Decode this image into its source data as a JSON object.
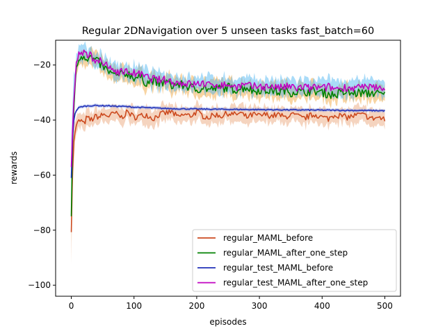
{
  "chart_data": {
    "type": "line",
    "title": "Regular 2DNavigation over 5 unseen tasks fast_batch=60",
    "xlabel": "episodes",
    "ylabel": "rewards",
    "xlim": [
      -25,
      525
    ],
    "ylim": [
      -104,
      -11
    ],
    "xticks": [
      0,
      100,
      200,
      300,
      400,
      500
    ],
    "yticks": [
      -100,
      -80,
      -60,
      -40,
      -20
    ],
    "xtick_labels": [
      "0",
      "100",
      "200",
      "300",
      "400",
      "500"
    ],
    "ytick_labels": [
      "−100",
      "−80",
      "−60",
      "−40",
      "−20"
    ],
    "legend_position": "lower-right",
    "grid": false,
    "series": [
      {
        "name": "regular_MAML_before",
        "color": "#cc4a1f",
        "band_color": "#e8a070",
        "x": [
          0,
          1,
          3,
          6,
          10,
          15,
          20,
          25,
          30,
          35,
          40,
          45,
          50,
          60,
          70,
          80,
          90,
          100,
          110,
          120,
          130,
          140,
          150,
          160,
          170,
          180,
          190,
          200,
          210,
          220,
          230,
          240,
          250,
          260,
          270,
          280,
          290,
          300,
          310,
          320,
          330,
          340,
          350,
          360,
          370,
          380,
          390,
          400,
          410,
          420,
          430,
          440,
          450,
          460,
          470,
          480,
          490,
          500
        ],
        "y": [
          -80.5,
          -67,
          -50,
          -44,
          -41,
          -40,
          -41.5,
          -39,
          -40,
          -39.5,
          -38.5,
          -39,
          -38,
          -38.5,
          -37.5,
          -39,
          -37,
          -39,
          -38.5,
          -38,
          -39.5,
          -38,
          -37.5,
          -37,
          -39,
          -38,
          -38.5,
          -37,
          -38.5,
          -39,
          -38,
          -38.5,
          -37.5,
          -38,
          -37.5,
          -39,
          -38,
          -38.5,
          -38,
          -38.5,
          -38,
          -39,
          -38,
          -38.5,
          -39.5,
          -38.5,
          -38,
          -39,
          -39.5,
          -38,
          -38.5,
          -39,
          -38.5,
          -38,
          -38.5,
          -39.5,
          -39,
          -40
        ]
      },
      {
        "name": "regular_MAML_after_one_step",
        "color": "#008000",
        "band_color": "#f0a030",
        "x": [
          0,
          2,
          5,
          8,
          11,
          14,
          17,
          20,
          25,
          30,
          35,
          40,
          45,
          50,
          60,
          70,
          80,
          90,
          100,
          110,
          120,
          130,
          140,
          150,
          160,
          170,
          180,
          190,
          200,
          210,
          220,
          230,
          240,
          250,
          260,
          270,
          280,
          290,
          300,
          310,
          320,
          330,
          340,
          350,
          360,
          370,
          380,
          390,
          400,
          410,
          420,
          430,
          440,
          450,
          460,
          470,
          480,
          490,
          500
        ],
        "y": [
          -75,
          -48,
          -30,
          -22,
          -18.5,
          -17,
          -16.8,
          -16.5,
          -17.5,
          -17,
          -18,
          -18.5,
          -19.5,
          -20.5,
          -22.5,
          -24,
          -23.5,
          -23,
          -24.5,
          -24.5,
          -26.5,
          -25.5,
          -27,
          -26,
          -27.5,
          -27,
          -27.5,
          -28,
          -29,
          -28,
          -29,
          -28.5,
          -28.5,
          -28,
          -29,
          -28.5,
          -28,
          -29.5,
          -29,
          -29.5,
          -29,
          -30,
          -29,
          -30,
          -29.5,
          -30,
          -29.5,
          -29.5,
          -30,
          -30.5,
          -31,
          -30,
          -30,
          -30.5,
          -30,
          -30.5,
          -30,
          -30.5,
          -31
        ]
      },
      {
        "name": "regular_test_MAML_before",
        "color": "#1f2fb8",
        "band_color": "#8898e0",
        "x": [
          0,
          1,
          3,
          5,
          8,
          12,
          16,
          20,
          30,
          40,
          50,
          60,
          70,
          80,
          100,
          120,
          150,
          200,
          250,
          300,
          350,
          400,
          450,
          500
        ],
        "y": [
          -61,
          -50,
          -42,
          -38.5,
          -36.5,
          -35.5,
          -35.2,
          -35,
          -34.8,
          -34.7,
          -34.8,
          -34.8,
          -35,
          -35,
          -35.3,
          -35.5,
          -35.8,
          -36,
          -36.1,
          -36.2,
          -36.3,
          -36.4,
          -36.5,
          -36.6
        ]
      },
      {
        "name": "regular_test_MAML_after_one_step",
        "color": "#c000c0",
        "band_color": "#40b0f0",
        "x": [
          0,
          2,
          5,
          8,
          11,
          14,
          17,
          20,
          25,
          30,
          35,
          40,
          45,
          50,
          60,
          70,
          80,
          90,
          100,
          110,
          120,
          130,
          140,
          150,
          160,
          170,
          180,
          190,
          200,
          210,
          220,
          230,
          240,
          250,
          260,
          270,
          280,
          290,
          300,
          310,
          320,
          330,
          340,
          350,
          360,
          370,
          380,
          390,
          400,
          410,
          420,
          430,
          440,
          450,
          460,
          470,
          480,
          490,
          500
        ],
        "y": [
          -57,
          -44,
          -28,
          -20,
          -16.5,
          -15.5,
          -15.8,
          -16,
          -16.5,
          -16.5,
          -17.5,
          -18,
          -18.5,
          -19.5,
          -21,
          -22,
          -22.5,
          -22.5,
          -23,
          -23.5,
          -24.5,
          -25,
          -25.5,
          -25.5,
          -26,
          -26.5,
          -26.5,
          -27,
          -27,
          -26.5,
          -27.5,
          -27,
          -27.5,
          -27,
          -28,
          -27.5,
          -27.5,
          -28,
          -27.5,
          -28,
          -27.5,
          -28.5,
          -28,
          -28,
          -28.5,
          -28,
          -28.5,
          -28,
          -28.5,
          -28,
          -28.5,
          -28.5,
          -28,
          -28.5,
          -28,
          -28.5,
          -28,
          -28.5,
          -28
        ]
      }
    ]
  }
}
